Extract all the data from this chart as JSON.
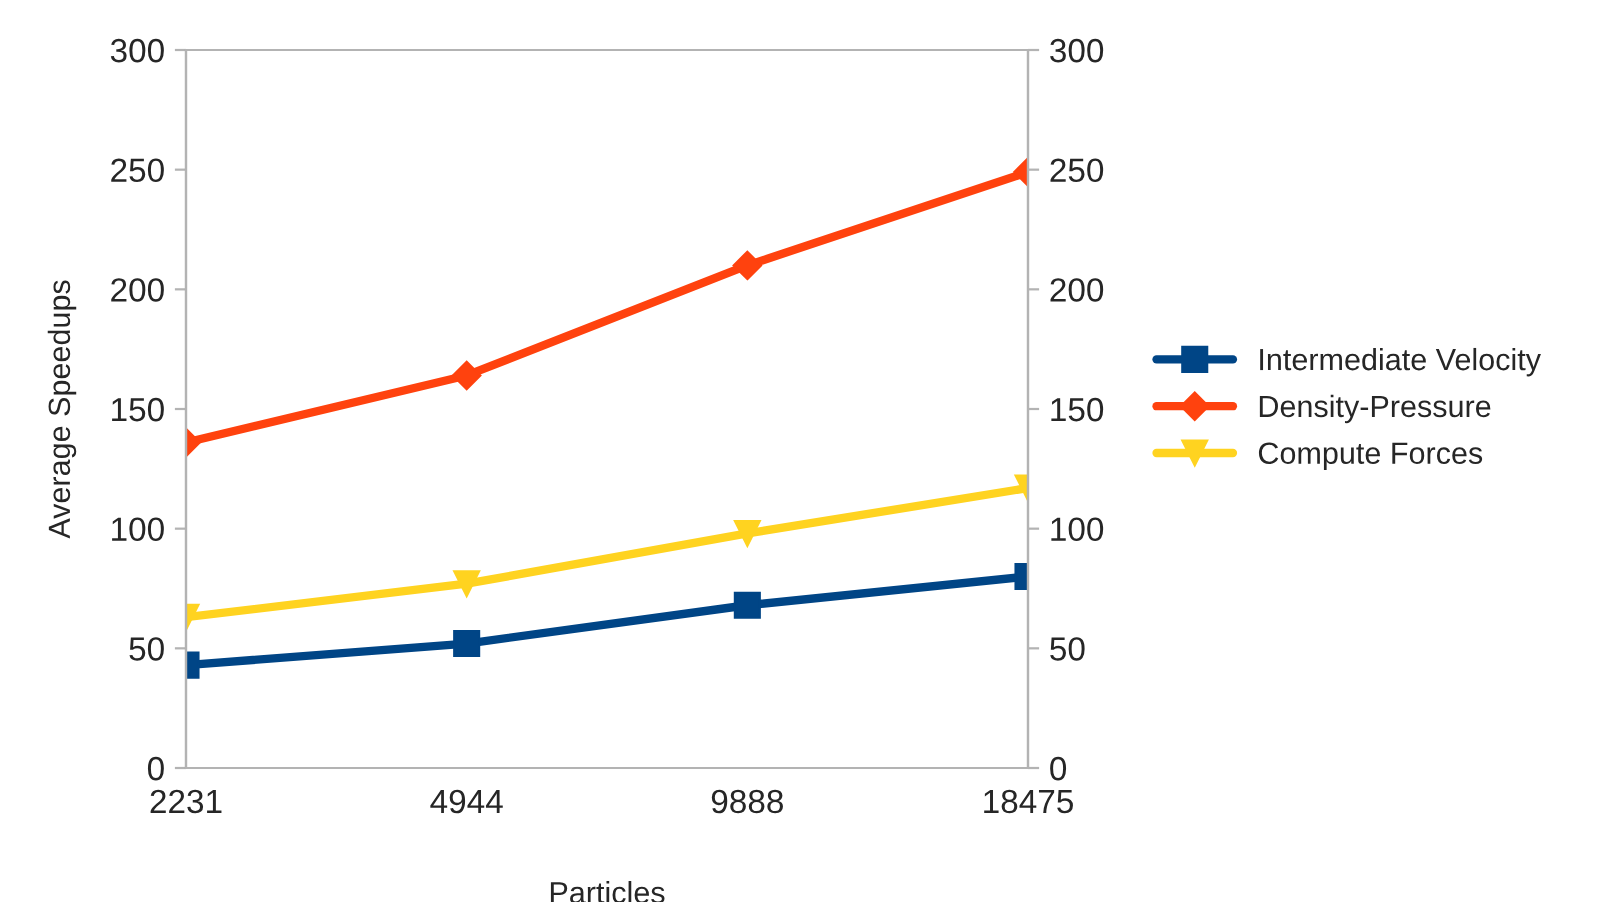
{
  "chart_data": {
    "type": "line",
    "xlabel": "Particles",
    "ylabel": "Average Speedups",
    "categories": [
      "2231",
      "4944",
      "9888",
      "18475"
    ],
    "series": [
      {
        "name": "Intermediate Velocity",
        "color": "#004586",
        "marker": "square",
        "values": [
          43,
          52,
          68,
          80
        ]
      },
      {
        "name": "Density-Pressure",
        "color": "#ff420e",
        "marker": "diamond",
        "values": [
          136,
          164,
          210,
          249
        ]
      },
      {
        "name": "Compute Forces",
        "color": "#ffd320",
        "marker": "triangle",
        "values": [
          63,
          77,
          98,
          117
        ]
      }
    ],
    "ylim": [
      0,
      300
    ],
    "yticks": [
      0,
      50,
      100,
      150,
      200,
      250,
      300
    ],
    "y2lim": [
      0,
      300
    ],
    "y2ticks": [
      0,
      50,
      100,
      150,
      200,
      250,
      300
    ],
    "grid": false,
    "legend": "right",
    "line_style": "solid"
  }
}
